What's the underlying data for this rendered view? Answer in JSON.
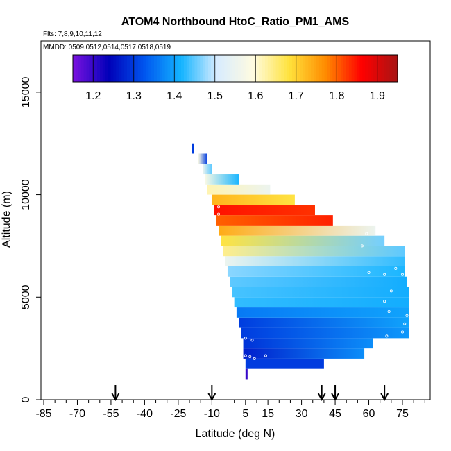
{
  "chart_data": {
    "type": "heatmap",
    "title": "ATOM4 Northbound HtoC_Ratio_PM1_AMS",
    "flights_label": "Flts: 7,8,9,10,11,12",
    "mmdd_label": "MMDD: 0509,0512,0514,0517,0518,0519",
    "xlabel": "Latitude (deg N)",
    "ylabel": "Altitude (m)",
    "xlim": [
      -90,
      90
    ],
    "ylim": [
      0,
      17500
    ],
    "x_ticks": [
      "-85",
      "-70",
      "-55",
      "-40",
      "-25",
      "-10",
      "5",
      "15",
      "30",
      "45",
      "60",
      "75"
    ],
    "x_tick_values": [
      -85,
      -70,
      -55,
      -40,
      -25,
      -10,
      5,
      15,
      30,
      45,
      60,
      75
    ],
    "y_ticks": [
      "0",
      "5000",
      "10000",
      "15000"
    ],
    "y_tick_values": [
      0,
      5000,
      10000,
      15000
    ],
    "colorbar": {
      "ticks": [
        "1.2",
        "1.3",
        "1.4",
        "1.5",
        "1.6",
        "1.7",
        "1.8",
        "1.9"
      ],
      "tick_values": [
        1.2,
        1.3,
        1.4,
        1.5,
        1.6,
        1.7,
        1.8,
        1.9
      ],
      "range": [
        1.15,
        1.95
      ],
      "colors": [
        "#7b12e0",
        "#0000b8",
        "#0057f0",
        "#14b4ff",
        "#d8ecff",
        "#fffbe0",
        "#ffe23c",
        "#ff8c00",
        "#ff0000",
        "#a81414"
      ]
    },
    "arrows_latitude": [
      -53,
      -10,
      39,
      45,
      67
    ],
    "layers": [
      {
        "alt": 1250,
        "lat_start": 5,
        "lat_end": 5,
        "start": 1.2,
        "end": 1.2
      },
      {
        "alt": 1750,
        "lat_start": 5,
        "lat_end": 40,
        "start": 1.3,
        "end": 1.3
      },
      {
        "alt": 2250,
        "lat_start": 4,
        "lat_end": 58,
        "start": 1.27,
        "end": 1.38
      },
      {
        "alt": 2750,
        "lat_start": 4,
        "lat_end": 62,
        "start": 1.29,
        "end": 1.38
      },
      {
        "alt": 3250,
        "lat_start": 3,
        "lat_end": 78,
        "start": 1.3,
        "end": 1.39
      },
      {
        "alt": 3750,
        "lat_start": 2,
        "lat_end": 78,
        "start": 1.3,
        "end": 1.4
      },
      {
        "alt": 4250,
        "lat_start": 1,
        "lat_end": 78,
        "start": 1.36,
        "end": 1.4
      },
      {
        "alt": 4750,
        "lat_start": 0,
        "lat_end": 78,
        "start": 1.43,
        "end": 1.41
      },
      {
        "alt": 5250,
        "lat_start": -1,
        "lat_end": 78,
        "start": 1.44,
        "end": 1.41
      },
      {
        "alt": 5750,
        "lat_start": -2,
        "lat_end": 77,
        "start": 1.45,
        "end": 1.41
      },
      {
        "alt": 6250,
        "lat_start": -3,
        "lat_end": 76,
        "start": 1.47,
        "end": 1.42
      },
      {
        "alt": 6750,
        "lat_start": -4,
        "lat_end": 76,
        "start": 1.55,
        "end": 1.43
      },
      {
        "alt": 7250,
        "lat_start": -5,
        "lat_end": 76,
        "start": 1.64,
        "end": 1.45
      },
      {
        "alt": 7750,
        "lat_start": -6,
        "lat_end": 67,
        "start": 1.68,
        "end": 1.46
      },
      {
        "alt": 8250,
        "lat_start": -7,
        "lat_end": 63,
        "start": 1.74,
        "end": 1.55
      },
      {
        "alt": 8750,
        "lat_start": -8,
        "lat_end": 44,
        "start": 1.8,
        "end": 1.84
      },
      {
        "alt": 9250,
        "lat_start": -9,
        "lat_end": 36,
        "start": 1.85,
        "end": 1.83
      },
      {
        "alt": 9750,
        "lat_start": -10,
        "lat_end": 27,
        "start": 1.73,
        "end": 1.68
      },
      {
        "alt": 10250,
        "lat_start": -12,
        "lat_end": 16,
        "start": 1.62,
        "end": 1.55
      },
      {
        "alt": 10750,
        "lat_start": -13,
        "lat_end": 2,
        "start": 1.58,
        "end": 1.42
      },
      {
        "alt": 11250,
        "lat_start": -14,
        "lat_end": -10,
        "start": 1.55,
        "end": 1.45
      },
      {
        "alt": 11750,
        "lat_start": -16,
        "lat_end": -12,
        "start": 1.58,
        "end": 1.3
      },
      {
        "alt": 12250,
        "lat_start": -19,
        "lat_end": -19,
        "start": 1.3,
        "end": 1.3
      }
    ],
    "points": [
      [
        5,
        3000
      ],
      [
        8,
        2900
      ],
      [
        5,
        2150
      ],
      [
        7,
        2100
      ],
      [
        9,
        2000
      ],
      [
        14,
        2150
      ],
      [
        -7,
        9400
      ],
      [
        -7,
        9050
      ],
      [
        49,
        8800
      ],
      [
        59,
        8100
      ],
      [
        69,
        8400
      ],
      [
        57,
        7500
      ],
      [
        81,
        6900
      ],
      [
        75,
        6100
      ],
      [
        72,
        6400
      ],
      [
        67,
        6100
      ],
      [
        60,
        6200
      ],
      [
        70,
        5300
      ],
      [
        67,
        4800
      ],
      [
        69,
        4300
      ],
      [
        77,
        4100
      ],
      [
        76,
        3700
      ],
      [
        75,
        3300
      ],
      [
        68,
        3100
      ],
      [
        63,
        2600
      ],
      [
        61,
        2350
      ]
    ]
  }
}
